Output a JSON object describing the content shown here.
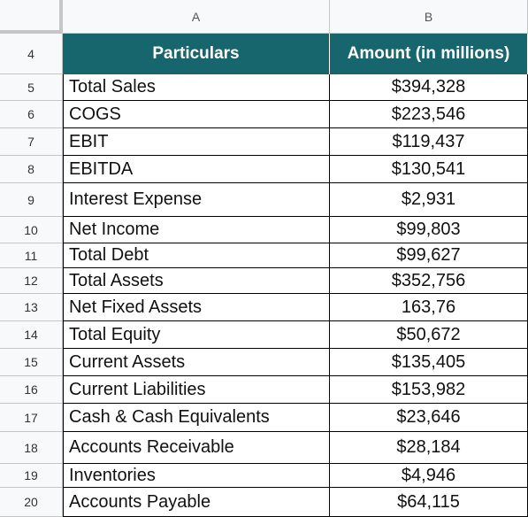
{
  "columns": [
    "A",
    "B"
  ],
  "row_numbers": [
    4,
    5,
    6,
    7,
    8,
    9,
    10,
    11,
    12,
    13,
    14,
    15,
    16,
    17,
    18,
    19,
    20
  ],
  "header": [
    "Particulars",
    "Amount (in millions)"
  ],
  "rows": [
    [
      "Total Sales",
      "$394,328"
    ],
    [
      "COGS",
      "$223,546"
    ],
    [
      "EBIT",
      "$119,437"
    ],
    [
      "EBITDA",
      "$130,541"
    ],
    [
      "Interest Expense",
      "$2,931"
    ],
    [
      "Net Income",
      "$99,803"
    ],
    [
      "Total Debt",
      "$99,627"
    ],
    [
      "Total Assets",
      "$352,756"
    ],
    [
      "Net Fixed Assets",
      "163,76"
    ],
    [
      "Total Equity",
      "$50,672"
    ],
    [
      "Current Assets",
      "$135,405"
    ],
    [
      "Current Liabilities",
      "$153,982"
    ],
    [
      "Cash & Cash Equivalents",
      "$23,646"
    ],
    [
      "Accounts Receivable",
      "$28,184"
    ],
    [
      "Inventories",
      "$4,946"
    ],
    [
      "Accounts Payable",
      "$64,115"
    ]
  ]
}
